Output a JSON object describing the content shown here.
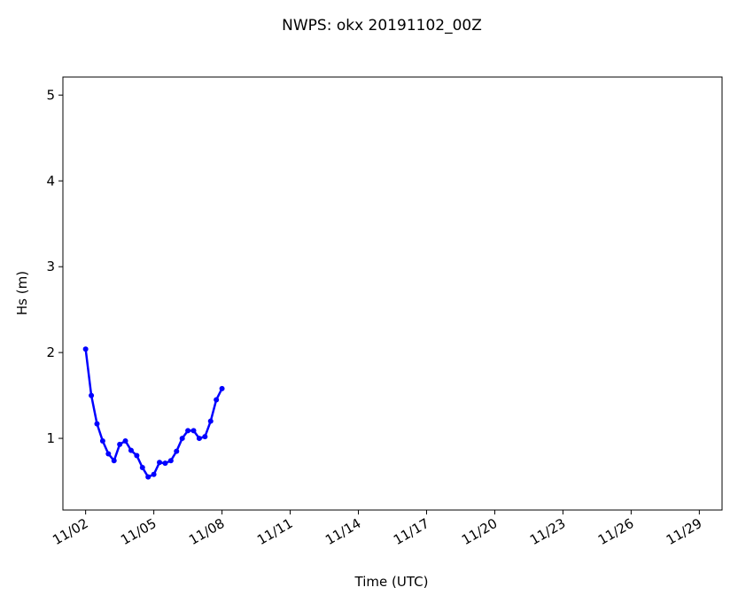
{
  "chart_data": {
    "type": "line",
    "title": "NWPS: okx 20191102_00Z",
    "xlabel": "Time (UTC)",
    "ylabel": "Hs (m)",
    "x": [
      2.0,
      2.25,
      2.5,
      2.75,
      3.0,
      3.25,
      3.5,
      3.75,
      4.0,
      4.25,
      4.5,
      4.75,
      5.0,
      5.25,
      5.5,
      5.75,
      6.0,
      6.25,
      6.5,
      6.75,
      7.0,
      7.25,
      7.5,
      7.75,
      8.0
    ],
    "series": [
      {
        "name": "Hs",
        "color": "#0000ff",
        "values": [
          2.04,
          1.5,
          1.17,
          0.97,
          0.82,
          0.74,
          0.93,
          0.97,
          0.86,
          0.8,
          0.66,
          0.55,
          0.58,
          0.72,
          0.71,
          0.74,
          0.85,
          1.0,
          1.09,
          1.09,
          1.0,
          1.02,
          1.2,
          1.45,
          1.58
        ]
      }
    ],
    "xlim": [
      1.0,
      30.0
    ],
    "xticks": [
      {
        "value": 2,
        "label": "11/02"
      },
      {
        "value": 5,
        "label": "11/05"
      },
      {
        "value": 8,
        "label": "11/08"
      },
      {
        "value": 11,
        "label": "11/11"
      },
      {
        "value": 14,
        "label": "11/14"
      },
      {
        "value": 17,
        "label": "11/17"
      },
      {
        "value": 20,
        "label": "11/20"
      },
      {
        "value": 23,
        "label": "11/23"
      },
      {
        "value": 26,
        "label": "11/26"
      },
      {
        "value": 29,
        "label": "11/29"
      }
    ],
    "ylim": [
      0.165,
      5.21
    ],
    "yticks": [
      1,
      2,
      3,
      4,
      5
    ],
    "grid": false
  }
}
